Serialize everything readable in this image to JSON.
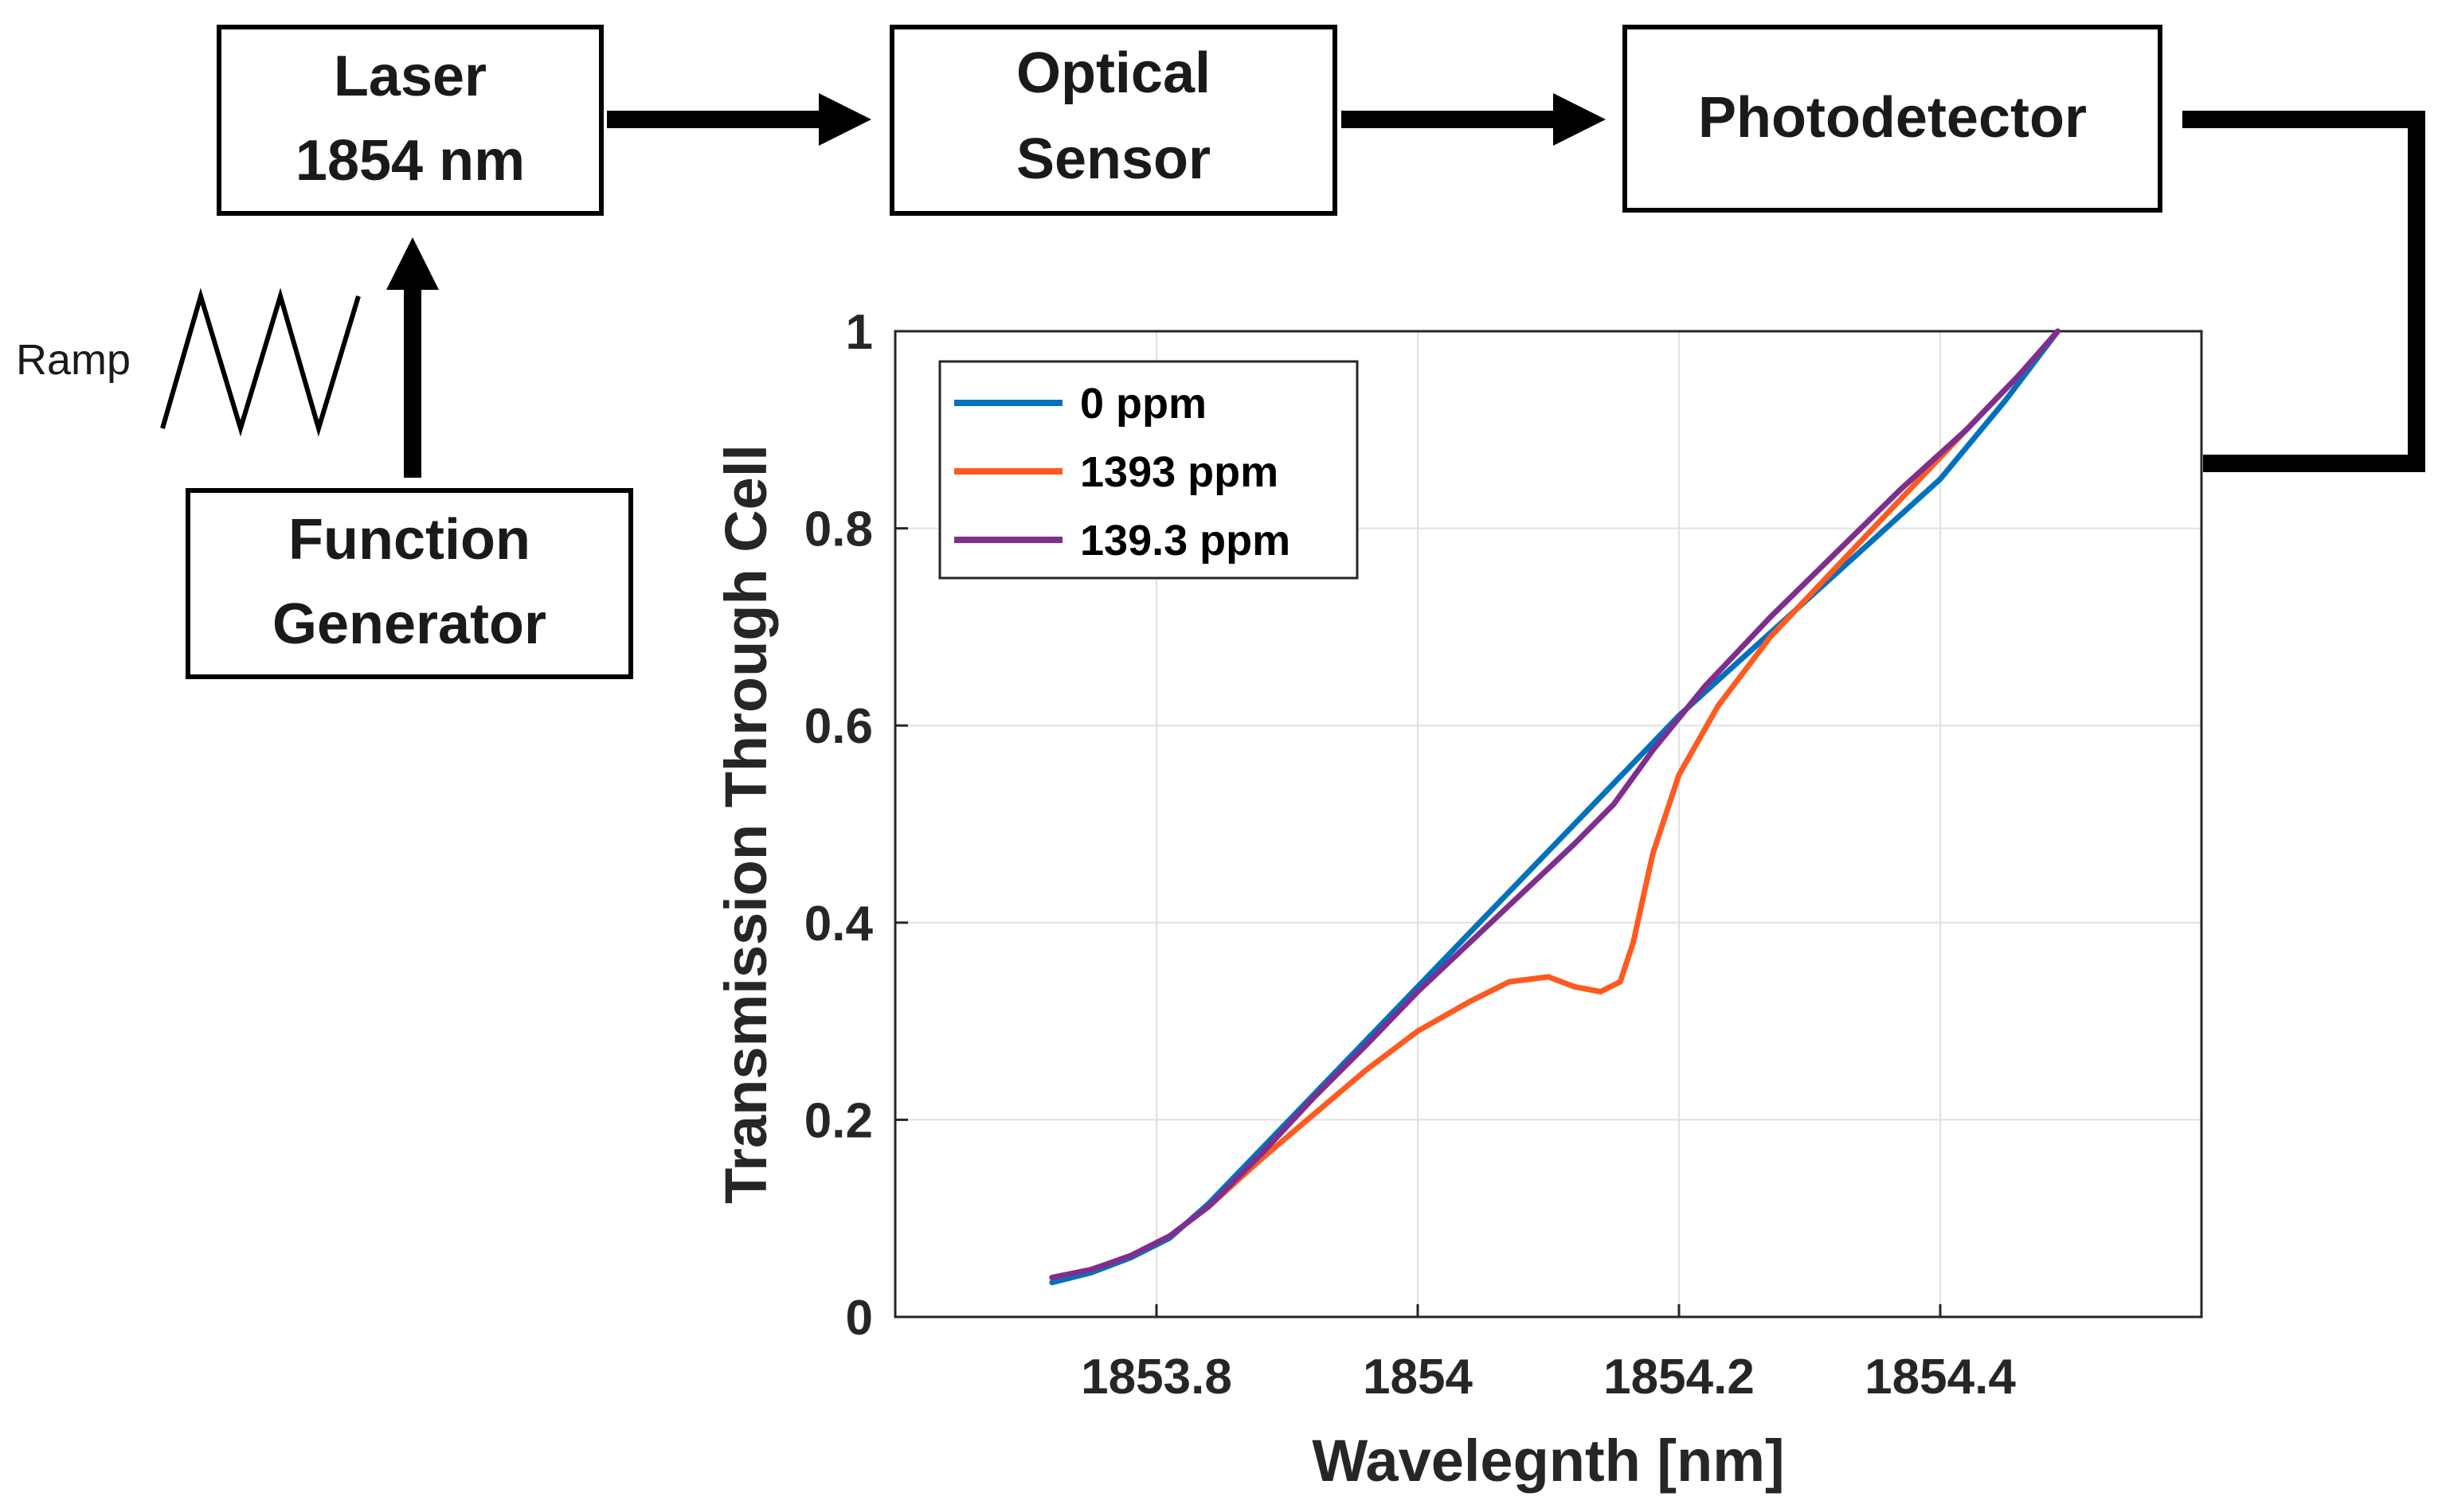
{
  "blocks": {
    "laser": [
      "Laser",
      "1854 nm"
    ],
    "sensor": [
      "Optical",
      "Sensor"
    ],
    "detector": [
      "Photodetector"
    ],
    "generator": [
      "Function",
      "Generator"
    ]
  },
  "ramp_label": "Ramp",
  "chart_data": {
    "type": "line",
    "title": "",
    "xlabel": "Wavelegnth [nm]",
    "ylabel": "Transmission Through Cell",
    "xlim": [
      1853.6,
      1854.6
    ],
    "ylim": [
      0,
      1
    ],
    "xticks": [
      1853.8,
      1854,
      1854.2,
      1854.4
    ],
    "xtick_labels": [
      "1853.8",
      "1854",
      "1854.2",
      "1854.4"
    ],
    "yticks": [
      0,
      0.2,
      0.4,
      0.6,
      0.8,
      1
    ],
    "ytick_labels": [
      "0",
      "0.2",
      "0.4",
      "0.6",
      "0.8",
      "1"
    ],
    "grid": true,
    "legend_position": "top-left",
    "series": [
      {
        "name": "0 ppm",
        "color": "#0072BD",
        "x": [
          1853.72,
          1853.75,
          1853.78,
          1853.81,
          1853.84,
          1853.88,
          1853.92,
          1853.96,
          1854.0,
          1854.04,
          1854.08,
          1854.12,
          1854.16,
          1854.2,
          1854.25,
          1854.3,
          1854.35,
          1854.4,
          1854.45,
          1854.49
        ],
        "y": [
          0.035,
          0.045,
          0.06,
          0.08,
          0.115,
          0.17,
          0.225,
          0.28,
          0.335,
          0.39,
          0.445,
          0.5,
          0.555,
          0.61,
          0.67,
          0.73,
          0.79,
          0.85,
          0.93,
          1.0
        ]
      },
      {
        "name": "1393 ppm",
        "color": "#FF5A1F",
        "x": [
          1853.72,
          1853.75,
          1853.78,
          1853.81,
          1853.84,
          1853.88,
          1853.92,
          1853.96,
          1854.0,
          1854.04,
          1854.07,
          1854.1,
          1854.12,
          1854.14,
          1854.155,
          1854.165,
          1854.18,
          1854.2,
          1854.23,
          1854.27,
          1854.32,
          1854.37,
          1854.42,
          1854.46,
          1854.49
        ],
        "y": [
          0.04,
          0.048,
          0.062,
          0.082,
          0.112,
          0.16,
          0.205,
          0.25,
          0.29,
          0.32,
          0.34,
          0.345,
          0.335,
          0.33,
          0.34,
          0.38,
          0.47,
          0.55,
          0.62,
          0.69,
          0.76,
          0.83,
          0.9,
          0.955,
          1.0
        ]
      },
      {
        "name": "139.3 ppm",
        "color": "#7E2F8E",
        "x": [
          1853.72,
          1853.75,
          1853.78,
          1853.81,
          1853.84,
          1853.88,
          1853.92,
          1853.96,
          1854.0,
          1854.04,
          1854.08,
          1854.12,
          1854.15,
          1854.18,
          1854.22,
          1854.27,
          1854.32,
          1854.37,
          1854.42,
          1854.46,
          1854.49
        ],
        "y": [
          0.04,
          0.048,
          0.062,
          0.082,
          0.112,
          0.165,
          0.222,
          0.275,
          0.33,
          0.38,
          0.43,
          0.48,
          0.52,
          0.575,
          0.64,
          0.71,
          0.775,
          0.84,
          0.9,
          0.955,
          1.0
        ]
      }
    ]
  }
}
